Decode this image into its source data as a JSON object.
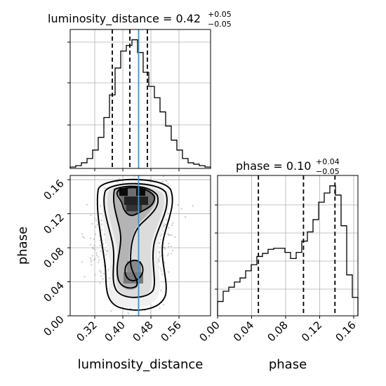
{
  "chart_data": [
    {
      "type": "histogram",
      "panel": "luminosity_distance marginal",
      "title": {
        "name": "luminosity_distance",
        "median": "0.42",
        "plus": "+0.05",
        "minus": "−0.05"
      },
      "x_range": [
        0.25,
        0.65
      ],
      "bin_edges": [
        0.25,
        0.266,
        0.282,
        0.298,
        0.314,
        0.33,
        0.346,
        0.362,
        0.378,
        0.394,
        0.41,
        0.426,
        0.442,
        0.458,
        0.474,
        0.49,
        0.506,
        0.522,
        0.538,
        0.554,
        0.57,
        0.586,
        0.602,
        0.618,
        0.634,
        0.65
      ],
      "counts": [
        1,
        2,
        4,
        7,
        13,
        22,
        36,
        52,
        71,
        83,
        87,
        91,
        82,
        68,
        58,
        50,
        40,
        30,
        20,
        13,
        7,
        4,
        3,
        2,
        1
      ],
      "quantile_lines": [
        0.37,
        0.42,
        0.47
      ],
      "truth": 0.445,
      "truth_color": "#4c8fc0"
    },
    {
      "type": "heatmap",
      "panel": "2D posterior",
      "x_name": "luminosity_distance",
      "y_name": "phase",
      "x_range": [
        0.25,
        0.65
      ],
      "y_range": [
        0.0,
        0.165
      ],
      "xticks": [
        "0.32",
        "0.40",
        "0.48",
        "0.56"
      ],
      "xtick_values": [
        0.32,
        0.4,
        0.48,
        0.56
      ],
      "yticks": [
        "0.00",
        "0.04",
        "0.08",
        "0.12",
        "0.16"
      ],
      "ytick_values": [
        0.0,
        0.04,
        0.08,
        0.12,
        0.16
      ],
      "xlabel": "luminosity_distance",
      "ylabel": "phase",
      "truth_x": 0.445
    },
    {
      "type": "histogram",
      "panel": "phase marginal",
      "title": {
        "name": "phase",
        "median": "0.10",
        "plus": "+0.04",
        "minus": "−0.05"
      },
      "x_range": [
        0.0,
        0.165
      ],
      "bin_edges": [
        0.0,
        0.0066,
        0.0132,
        0.0198,
        0.0264,
        0.033,
        0.0396,
        0.0462,
        0.0528,
        0.0594,
        0.066,
        0.0726,
        0.0792,
        0.0858,
        0.0924,
        0.099,
        0.1056,
        0.1122,
        0.1188,
        0.1254,
        0.132,
        0.1386,
        0.1452,
        0.1518,
        0.1584,
        0.165
      ],
      "counts": [
        14,
        24,
        28,
        33,
        37,
        44,
        50,
        58,
        61,
        65,
        66,
        66,
        62,
        56,
        62,
        73,
        82,
        94,
        111,
        120,
        127,
        118,
        88,
        40,
        18
      ],
      "quantile_lines": [
        0.048,
        0.101,
        0.138
      ],
      "xticks": [
        "0.00",
        "0.04",
        "0.08",
        "0.12",
        "0.16"
      ],
      "xtick_values": [
        0.0,
        0.04,
        0.08,
        0.12,
        0.16
      ],
      "xlabel": "phase"
    }
  ]
}
